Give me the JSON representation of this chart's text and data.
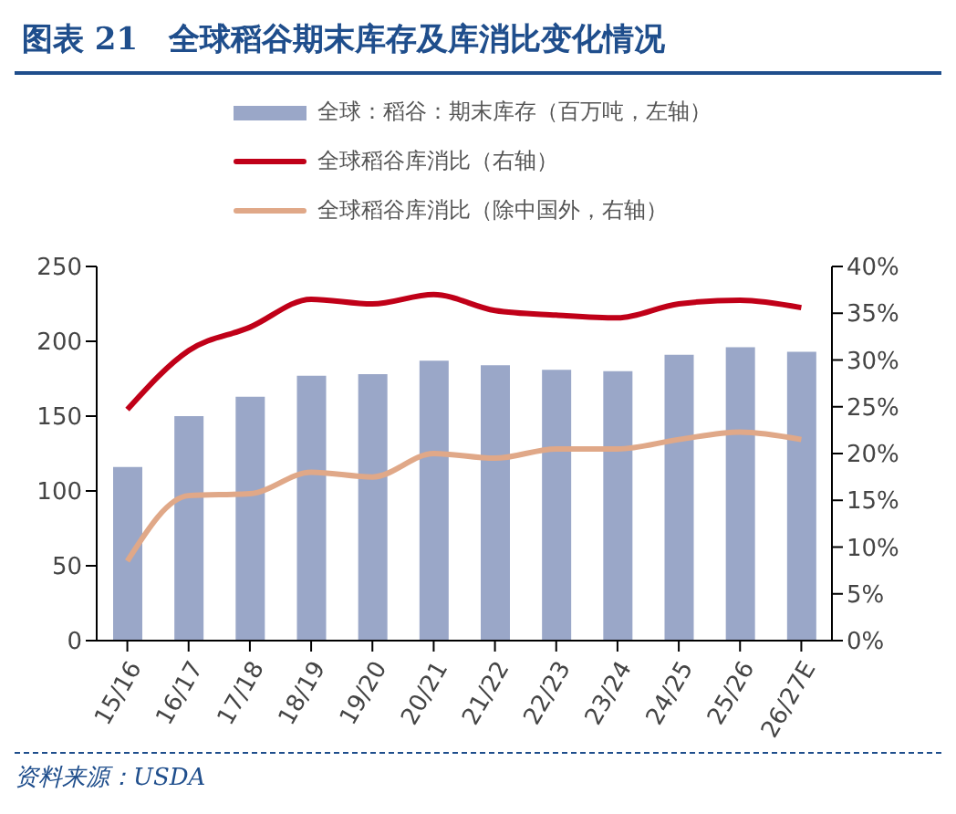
{
  "chart_data": {
    "type": "bar",
    "title": "图表 21　全球稻谷期末库存及库消比变化情况",
    "categories": [
      "15/16",
      "16/17",
      "17/18",
      "18/19",
      "19/20",
      "20/21",
      "21/22",
      "22/23",
      "23/24",
      "24/25",
      "25/26",
      "26/27E"
    ],
    "series": [
      {
        "name": "全球：稻谷：期末库存（百万吨，左轴）",
        "color": "#9aa7c8",
        "values": [
          116,
          150,
          163,
          177,
          178,
          187,
          184,
          181,
          180,
          191,
          196,
          193
        ]
      },
      {
        "name": "全球稻谷库消比（右轴）",
        "type": "line",
        "axis": "y2",
        "color": "#c00018",
        "values": [
          24.7,
          31,
          33.5,
          36.5,
          36,
          37,
          35.3,
          34.8,
          34.5,
          36,
          36.4,
          35.6
        ]
      },
      {
        "name": "全球稻谷库消比（除中国外，右轴）",
        "type": "line",
        "axis": "y2",
        "color": "#e0a888",
        "values": [
          8.5,
          15.5,
          15.7,
          18,
          17.5,
          20,
          19.5,
          20.5,
          20.5,
          21.5,
          22.3,
          21.5
        ]
      }
    ],
    "ylim": [
      0,
      250
    ],
    "yticks": [
      0,
      50,
      100,
      150,
      200,
      250
    ],
    "y2lim": [
      0,
      40
    ],
    "y2ticks": [
      {
        "value": 0,
        "label": "0%"
      },
      {
        "value": 5,
        "label": "5%"
      },
      {
        "value": 10,
        "label": "10%"
      },
      {
        "value": 15,
        "label": "15%"
      },
      {
        "value": 20,
        "label": "20%"
      },
      {
        "value": 25,
        "label": "25%"
      },
      {
        "value": 30,
        "label": "30%"
      },
      {
        "value": 35,
        "label": "35%"
      },
      {
        "value": 40,
        "label": "40%"
      }
    ],
    "grid": false,
    "legend": "top",
    "marker": "none",
    "line_style": "solid",
    "annotations": [
      "资料来源：USDA"
    ]
  }
}
